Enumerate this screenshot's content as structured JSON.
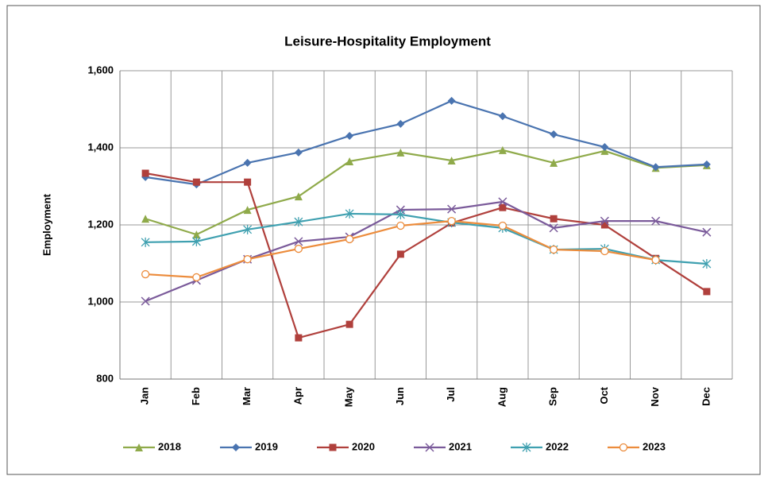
{
  "chart_data": {
    "type": "line",
    "title": "Leisure-Hospitality Employment",
    "y_label": "Employment",
    "categories": [
      "Jan",
      "Feb",
      "Mar",
      "Apr",
      "May",
      "Jun",
      "Jul",
      "Aug",
      "Sep",
      "Oct",
      "Nov",
      "Dec"
    ],
    "series": [
      {
        "name": "2018",
        "color": "#8faa4a",
        "marker": "triangle",
        "values": [
          1216,
          1175,
          1239,
          1274,
          1365,
          1388,
          1367,
          1394,
          1361,
          1392,
          1348,
          1355
        ]
      },
      {
        "name": "2019",
        "color": "#4a74b0",
        "marker": "diamond",
        "values": [
          1324,
          1305,
          1361,
          1388,
          1431,
          1462,
          1522,
          1482,
          1435,
          1402,
          1350,
          1357
        ]
      },
      {
        "name": "2020",
        "color": "#b0403c",
        "marker": "square",
        "values": [
          1334,
          1311,
          1311,
          907,
          942,
          1124,
          1205,
          1245,
          1216,
          1200,
          1113,
          1027
        ]
      },
      {
        "name": "2021",
        "color": "#7a5a9a",
        "marker": "x",
        "values": [
          1002,
          1056,
          1111,
          1157,
          1169,
          1239,
          1241,
          1260,
          1192,
          1210,
          1210,
          1181
        ]
      },
      {
        "name": "2022",
        "color": "#3fa0b0",
        "marker": "star",
        "values": [
          1155,
          1157,
          1188,
          1208,
          1229,
          1227,
          1206,
          1192,
          1136,
          1138,
          1109,
          1099
        ]
      },
      {
        "name": "2023",
        "color": "#ec8c3c",
        "marker": "circle",
        "values": [
          1072,
          1064,
          1111,
          1138,
          1163,
          1198,
          1210,
          1198,
          1136,
          1132,
          1109,
          null
        ]
      }
    ],
    "ylim": [
      800,
      1600
    ],
    "yticks": [
      {
        "value": 800,
        "label": "800"
      },
      {
        "value": 1000,
        "label": "1,000"
      },
      {
        "value": 1200,
        "label": "1,200"
      },
      {
        "value": 1400,
        "label": "1,400"
      },
      {
        "value": 1600,
        "label": "1,600"
      }
    ],
    "grid": true,
    "legend": "bottom"
  }
}
